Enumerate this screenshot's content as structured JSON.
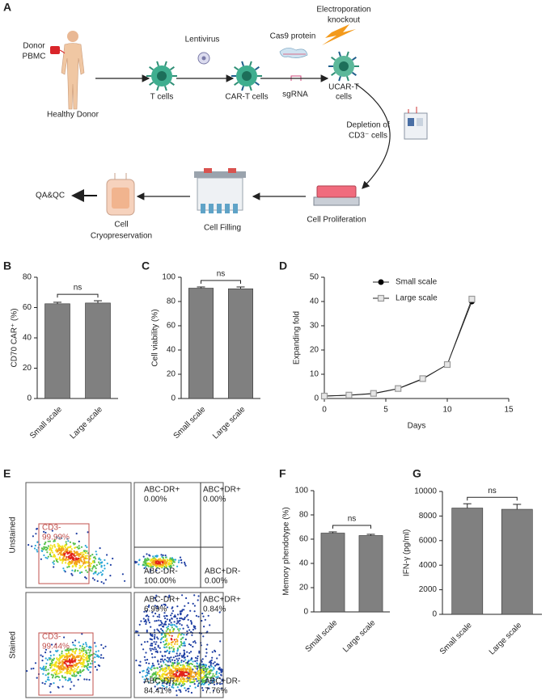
{
  "diagram": {
    "panel": "A",
    "donor": [
      "Donor",
      "PBMC"
    ],
    "healthy_donor": "Healthy Donor",
    "lentivirus": "Lentivirus",
    "t_cells": "T cells",
    "car_t_cells": "CAR-T cells",
    "cas9": "Cas9 protein",
    "sgrna": "sgRNA",
    "electroporation": [
      "Electroporation",
      "knockout"
    ],
    "ucar_t": [
      "UCAR-T",
      "cells"
    ],
    "depletion": [
      "Depletion of",
      "CD3⁻ cells"
    ],
    "proliferation": "Cell Proliferation",
    "filling": "Cell Filling",
    "cryo": [
      "Cell",
      "Cryopreservation"
    ],
    "qaqc": "QA&QC"
  },
  "flow": {
    "panel": "E",
    "rows": [
      {
        "label": "Unstained",
        "gate": [
          "CD3-",
          "99.99%"
        ],
        "quadrants": [
          [
            "ABC-DR+",
            "0.00%"
          ],
          [
            "ABC+DR+",
            "0.00%"
          ],
          [
            "ABC-DR-",
            "100.00%"
          ],
          [
            "ABC+DR-",
            "0.00%"
          ]
        ]
      },
      {
        "label": "Stained",
        "gate": [
          "CD3-",
          "99.44%"
        ],
        "quadrants": [
          [
            "ABC-DR+",
            "6.99%"
          ],
          [
            "ABC+DR+",
            "0.84%"
          ],
          [
            "ABC-DR-",
            "84.41%"
          ],
          [
            "ABC+DR-",
            "7.76%"
          ]
        ]
      }
    ]
  },
  "chart_data": [
    {
      "type": "bar",
      "panel": "B",
      "ylabel": "CD70 CAR⁺ (%)",
      "categories": [
        "Small scale",
        "Large scale"
      ],
      "values": [
        62.5,
        63
      ],
      "errors": [
        1,
        1.5
      ],
      "color": "#808080",
      "ylim": [
        0,
        80
      ],
      "yticks": [
        0,
        20,
        40,
        60,
        80
      ],
      "annotation": "ns"
    },
    {
      "type": "bar",
      "panel": "C",
      "ylabel": "Cell viability (%)",
      "categories": [
        "Small scale",
        "Large scale"
      ],
      "values": [
        91,
        90.5
      ],
      "errors": [
        1,
        1.5
      ],
      "color": "#808080",
      "ylim": [
        0,
        100
      ],
      "yticks": [
        0,
        20,
        40,
        60,
        80,
        100
      ],
      "annotation": "ns"
    },
    {
      "type": "line",
      "panel": "D",
      "xlabel": "Days",
      "ylabel": "Expanding fold",
      "x": [
        0,
        2,
        4,
        6,
        8,
        10,
        12
      ],
      "series": [
        {
          "name": "Small scale",
          "color": "#000000",
          "marker": "circle",
          "values": [
            1,
            1.3,
            2,
            4,
            8,
            14,
            40
          ]
        },
        {
          "name": "Large scale",
          "color": "#999999",
          "marker": "square",
          "values": [
            1,
            1.4,
            2.1,
            4.1,
            8.2,
            14,
            41
          ]
        }
      ],
      "xlim": [
        0,
        15
      ],
      "xticks": [
        0,
        5,
        10,
        15
      ],
      "ylim": [
        0,
        50
      ],
      "yticks": [
        0,
        10,
        20,
        30,
        40,
        50
      ],
      "legend": "upper left"
    },
    {
      "type": "bar",
      "panel": "F",
      "ylabel": "Memory phendotype (%)",
      "categories": [
        "Small scale",
        "Large scale"
      ],
      "values": [
        65,
        63
      ],
      "errors": [
        1,
        1
      ],
      "color": "#808080",
      "ylim": [
        0,
        100
      ],
      "yticks": [
        0,
        20,
        40,
        60,
        80,
        100
      ],
      "annotation": "ns"
    },
    {
      "type": "bar",
      "panel": "G",
      "ylabel": "IFN-γ (pg/ml)",
      "categories": [
        "Small scale",
        "Large scale"
      ],
      "values": [
        8650,
        8550
      ],
      "errors": [
        350,
        400
      ],
      "color": "#808080",
      "ylim": [
        0,
        10000
      ],
      "yticks": [
        0,
        2000,
        4000,
        6000,
        8000,
        10000
      ],
      "annotation": "ns"
    }
  ]
}
